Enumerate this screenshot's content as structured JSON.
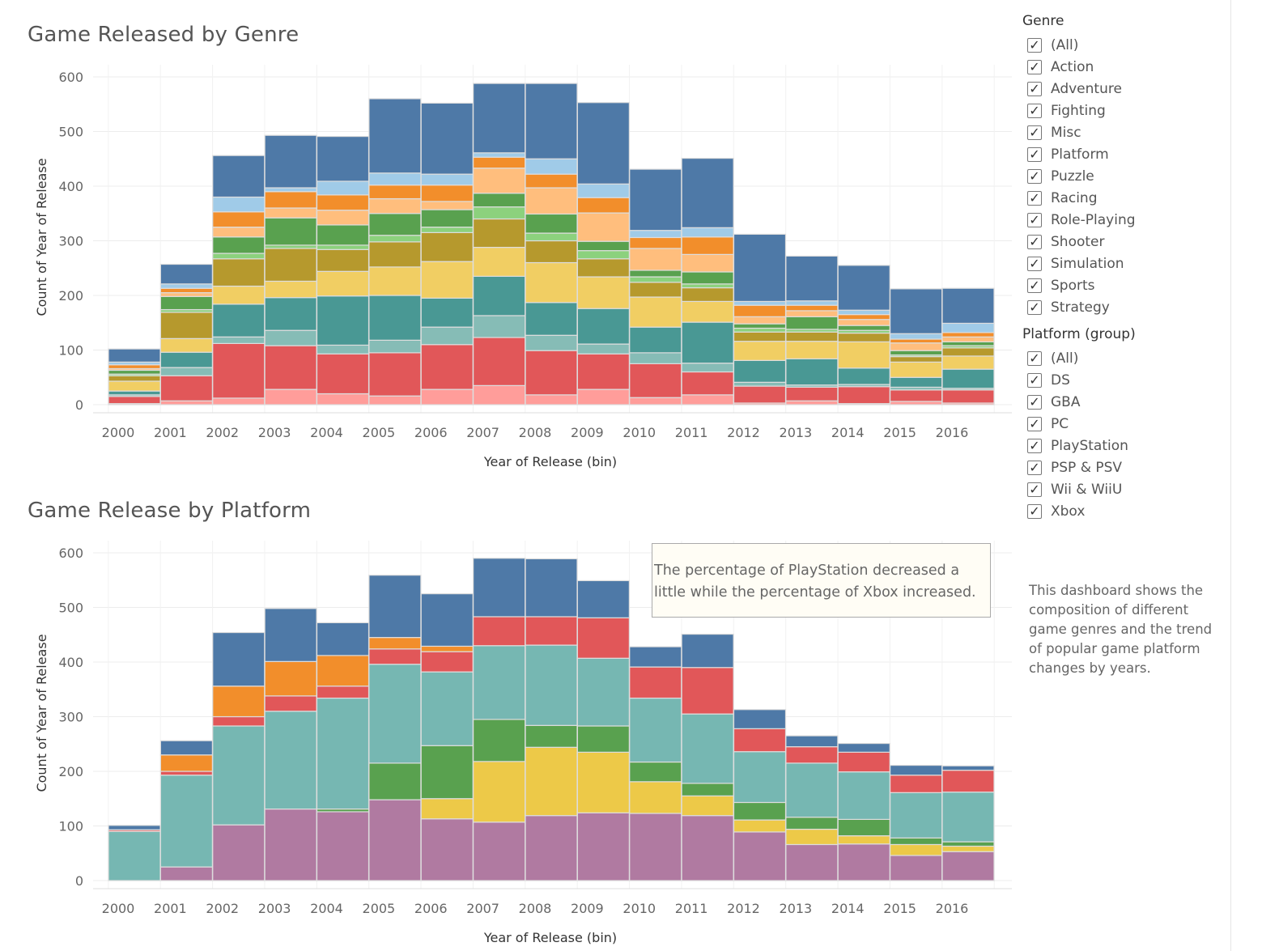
{
  "charts_meta": {
    "genre_title": "Game Released by Genre",
    "platform_title": "Game Release by Platform"
  },
  "genre_filter": {
    "title": "Genre",
    "items": [
      "(All)",
      "Action",
      "Adventure",
      "Fighting",
      "Misc",
      "Platform",
      "Puzzle",
      "Racing",
      "Role-Playing",
      "Shooter",
      "Simulation",
      "Sports",
      "Strategy"
    ]
  },
  "platform_filter": {
    "title": "Platform (group)",
    "items": [
      "(All)",
      "DS",
      "GBA",
      "PC",
      "PlayStation",
      "PSP & PSV",
      "Wii & WiiU",
      "Xbox"
    ]
  },
  "annotation": "The percentage of PlayStation decreased a little while the percentage of Xbox increased.",
  "description": "This dashboard shows the composition of different game genres and the trend of popular game platform changes by years.",
  "checkmark": "✓",
  "chart_data": [
    {
      "type": "bar",
      "stacked": true,
      "title": "Game Released by Genre",
      "xlabel": "Year of Release (bin)",
      "ylabel": "Count of Year of Release",
      "ylim": [
        0,
        600
      ],
      "yticks": [
        0,
        100,
        200,
        300,
        400,
        500,
        600
      ],
      "grid": true,
      "categories": [
        "2000",
        "2001",
        "2002",
        "2003",
        "2004",
        "2005",
        "2006",
        "2007",
        "2008",
        "2009",
        "2010",
        "2011",
        "2012",
        "2013",
        "2014",
        "2015",
        "2016"
      ],
      "series": [
        {
          "color": "#ff9d9a",
          "values": [
            2,
            7,
            12,
            28,
            20,
            16,
            28,
            35,
            18,
            28,
            13,
            18,
            3,
            7,
            2,
            6,
            3
          ]
        },
        {
          "color": "#e15759",
          "values": [
            13,
            46,
            100,
            80,
            73,
            79,
            82,
            88,
            81,
            65,
            62,
            42,
            31,
            25,
            31,
            21,
            24
          ]
        },
        {
          "color": "#86bcb6",
          "values": [
            3,
            15,
            12,
            28,
            16,
            23,
            32,
            40,
            28,
            18,
            20,
            16,
            7,
            4,
            4,
            5,
            3
          ]
        },
        {
          "color": "#499894",
          "values": [
            7,
            28,
            60,
            60,
            90,
            82,
            53,
            72,
            60,
            65,
            47,
            75,
            40,
            48,
            30,
            18,
            35
          ]
        },
        {
          "color": "#f1ce63",
          "values": [
            18,
            25,
            33,
            30,
            45,
            52,
            67,
            53,
            73,
            58,
            55,
            38,
            35,
            32,
            48,
            28,
            24
          ]
        },
        {
          "color": "#b6992d",
          "values": [
            10,
            48,
            50,
            60,
            40,
            46,
            53,
            52,
            40,
            33,
            27,
            25,
            17,
            17,
            16,
            10,
            15
          ]
        },
        {
          "color": "#8cd17d",
          "values": [
            3,
            5,
            10,
            6,
            8,
            12,
            10,
            22,
            14,
            15,
            10,
            7,
            7,
            5,
            5,
            3,
            4
          ]
        },
        {
          "color": "#59a14f",
          "values": [
            7,
            24,
            30,
            50,
            37,
            40,
            32,
            25,
            35,
            17,
            12,
            22,
            8,
            23,
            9,
            8,
            7
          ]
        },
        {
          "color": "#ffbe7d",
          "values": [
            3,
            7,
            18,
            18,
            27,
            27,
            15,
            46,
            48,
            52,
            40,
            32,
            13,
            11,
            11,
            14,
            9
          ]
        },
        {
          "color": "#f28e2b",
          "values": [
            7,
            8,
            28,
            30,
            28,
            25,
            30,
            20,
            25,
            28,
            20,
            32,
            21,
            10,
            9,
            7,
            8
          ]
        },
        {
          "color": "#a0cbe8",
          "values": [
            5,
            8,
            27,
            7,
            25,
            22,
            20,
            8,
            28,
            25,
            13,
            17,
            7,
            8,
            8,
            10,
            17
          ]
        },
        {
          "color": "#4e79a7",
          "values": [
            24,
            36,
            76,
            96,
            82,
            136,
            130,
            127,
            138,
            149,
            112,
            127,
            123,
            82,
            82,
            82,
            64
          ]
        }
      ]
    },
    {
      "type": "bar",
      "stacked": true,
      "title": "Game Release by Platform",
      "xlabel": "Year of Release (bin)",
      "ylabel": "Count of Year of Release",
      "ylim": [
        0,
        600
      ],
      "yticks": [
        0,
        100,
        200,
        300,
        400,
        500,
        600
      ],
      "grid": true,
      "categories": [
        "2000",
        "2001",
        "2002",
        "2003",
        "2004",
        "2005",
        "2006",
        "2007",
        "2008",
        "2009",
        "2010",
        "2011",
        "2012",
        "2013",
        "2014",
        "2015",
        "2016"
      ],
      "series": [
        {
          "color": "#b07aa1",
          "values": [
            0,
            25,
            102,
            131,
            126,
            148,
            113,
            107,
            119,
            124,
            123,
            119,
            89,
            66,
            67,
            46,
            53
          ]
        },
        {
          "color": "#edc948",
          "values": [
            0,
            0,
            0,
            0,
            0,
            0,
            37,
            111,
            125,
            111,
            58,
            36,
            22,
            28,
            15,
            20,
            10
          ]
        },
        {
          "color": "#59a14f",
          "values": [
            0,
            0,
            0,
            0,
            5,
            67,
            97,
            77,
            40,
            48,
            36,
            23,
            32,
            22,
            30,
            12,
            8
          ]
        },
        {
          "color": "#76b7b2",
          "values": [
            90,
            168,
            181,
            179,
            203,
            181,
            135,
            135,
            147,
            124,
            117,
            127,
            93,
            99,
            87,
            83,
            91
          ]
        },
        {
          "color": "#e15759",
          "values": [
            3,
            7,
            17,
            28,
            22,
            28,
            37,
            53,
            52,
            74,
            57,
            85,
            42,
            30,
            36,
            32,
            40
          ]
        },
        {
          "color": "#f28e2b",
          "values": [
            0,
            30,
            56,
            63,
            56,
            21,
            10,
            0,
            0,
            0,
            0,
            0,
            0,
            0,
            0,
            0,
            0
          ]
        },
        {
          "color": "#4e79a7",
          "values": [
            8,
            26,
            98,
            97,
            60,
            114,
            96,
            107,
            106,
            68,
            37,
            61,
            35,
            20,
            16,
            18,
            8
          ]
        }
      ]
    }
  ]
}
